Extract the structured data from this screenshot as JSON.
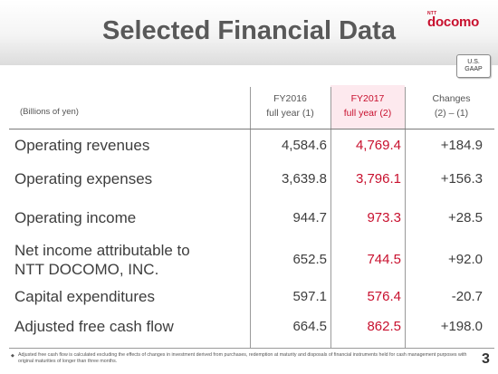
{
  "title": "Selected Financial Data",
  "logo": {
    "small": "NTT",
    "main": "docomo"
  },
  "gaap_badge": {
    "line1": "U.S.",
    "line2": "GAAP"
  },
  "table": {
    "unit_label": "(Billions of yen)",
    "headers": [
      {
        "line1": "FY2016",
        "line2": "full year (1)"
      },
      {
        "line1": "FY2017",
        "line2": "full  year (2)"
      },
      {
        "line1": "Changes",
        "line2": "(2) – (1)"
      }
    ],
    "rows": [
      {
        "label": "Operating revenues",
        "fy2016": "4,584.6",
        "fy2017": "4,769.4",
        "change": "+184.9"
      },
      {
        "label": "Operating expenses",
        "fy2016": "3,639.8",
        "fy2017": "3,796.1",
        "change": "+156.3"
      },
      {
        "label": "Operating income",
        "fy2016": "944.7",
        "fy2017": "973.3",
        "change": "+28.5"
      },
      {
        "label": "Net income attributable to NTT DOCOMO, INC.",
        "label_line1": "Net income attributable to",
        "label_line2": "NTT DOCOMO, INC.",
        "fy2016": "652.5",
        "fy2017": "744.5",
        "change": "+92.0"
      },
      {
        "label": "Capital expenditures",
        "fy2016": "597.1",
        "fy2017": "576.4",
        "change": "-20.7"
      },
      {
        "label": "Adjusted free cash flow",
        "fy2016": "664.5",
        "fy2017": "862.5",
        "change": "+198.0"
      }
    ]
  },
  "footnote": {
    "bullet": "◆",
    "text": "Adjusted free cash flow is calculated excluding the effects of changes in investment derived from purchases, redemption at maturity and disposals of financial instruments held for cash management purposes with original maturities of longer than three months."
  },
  "page_number": "3",
  "colors": {
    "accent": "#c8102e",
    "highlight": "#fde9ee",
    "title": "#595959"
  }
}
